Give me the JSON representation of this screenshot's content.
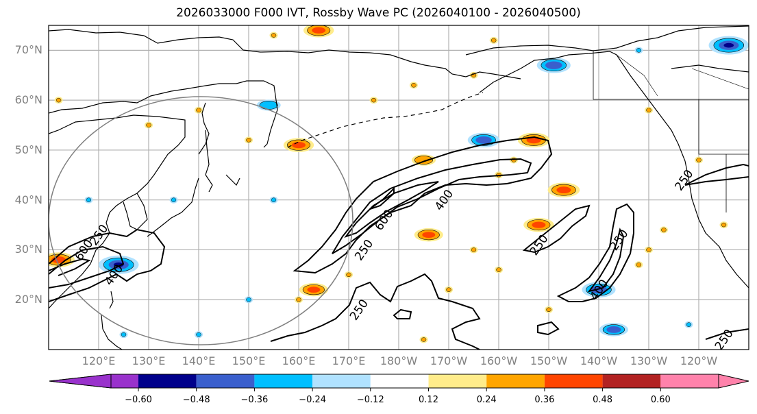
{
  "title": "2026033000 F000 IVT, Rossby Wave PC (2026040100 - 2026040500)",
  "map": {
    "projection": "PlateCarree",
    "extent": {
      "lon_min": 110,
      "lon_max": 250,
      "lat_min": 10,
      "lat_max": 75
    },
    "lat_ticks": [
      {
        "value": 70,
        "label": "70°N"
      },
      {
        "value": 60,
        "label": "60°N"
      },
      {
        "value": 50,
        "label": "50°N"
      },
      {
        "value": 40,
        "label": "40°N"
      },
      {
        "value": 30,
        "label": "30°N"
      },
      {
        "value": 20,
        "label": "20°N"
      }
    ],
    "lon_ticks": [
      {
        "value": 120,
        "label": "120°E"
      },
      {
        "value": 130,
        "label": "130°E"
      },
      {
        "value": 140,
        "label": "140°E"
      },
      {
        "value": 150,
        "label": "150°E"
      },
      {
        "value": 160,
        "label": "160°E"
      },
      {
        "value": 170,
        "label": "170°E"
      },
      {
        "value": 180,
        "label": "180°W"
      },
      {
        "value": 190,
        "label": "170°W"
      },
      {
        "value": 200,
        "label": "160°W"
      },
      {
        "value": 210,
        "label": "150°W"
      },
      {
        "value": 220,
        "label": "140°W"
      },
      {
        "value": 230,
        "label": "130°W"
      },
      {
        "value": 240,
        "label": "120°W"
      }
    ],
    "gridline_color": "#b0b0b0",
    "circle_color": "#808080"
  },
  "chart_data": {
    "type": "heatmap",
    "title": "2026033000 F000 IVT, Rossby Wave PC (2026040100 - 2026040500)",
    "shaded_variable": "Rossby Wave PC",
    "contour_variable": "IVT",
    "ivt_contour_levels": [
      250,
      400,
      600
    ],
    "ivt_contour_labels": [
      {
        "text": "250",
        "lon": 173,
        "lat": 30
      },
      {
        "text": "600",
        "lon": 177,
        "lat": 36
      },
      {
        "text": "400",
        "lon": 189,
        "lat": 40
      },
      {
        "text": "250",
        "lon": 172,
        "lat": 18
      },
      {
        "text": "250",
        "lon": 208,
        "lat": 31
      },
      {
        "text": "250",
        "lon": 224,
        "lat": 32
      },
      {
        "text": "400",
        "lon": 220,
        "lat": 22
      },
      {
        "text": "250",
        "lon": 237,
        "lat": 44
      },
      {
        "text": "250",
        "lon": 245,
        "lat": 12
      },
      {
        "text": "600",
        "lon": 117,
        "lat": 30
      },
      {
        "text": "250",
        "lon": 120,
        "lat": 33
      },
      {
        "text": "400",
        "lon": 123,
        "lat": 25
      }
    ],
    "colorbar": {
      "ticks": [
        "−0.60",
        "−0.48",
        "−0.36",
        "−0.24",
        "−0.12",
        "0.12",
        "0.24",
        "0.36",
        "0.48",
        "0.60"
      ],
      "bounds": [
        -0.72,
        -0.6,
        -0.48,
        -0.36,
        -0.24,
        -0.12,
        0.12,
        0.24,
        0.36,
        0.48,
        0.6,
        0.72
      ],
      "colors": [
        "#9932cc",
        "#00008b",
        "#3a5fcd",
        "#00bfff",
        "#b0e2ff",
        "#ffffff",
        "#ffec8b",
        "#ffa500",
        "#ff4500",
        "#b22222",
        "#ff82ab"
      ],
      "extend": "both"
    },
    "anomaly_regions": [
      {
        "lon": 186,
        "lat": 33,
        "value": 0.36
      },
      {
        "lon": 207,
        "lat": 52,
        "value": 0.4
      },
      {
        "lon": 213,
        "lat": 42,
        "value": 0.4
      },
      {
        "lon": 208,
        "lat": 35,
        "value": 0.38
      },
      {
        "lon": 185,
        "lat": 48,
        "value": 0.3
      },
      {
        "lon": 160,
        "lat": 51,
        "value": 0.38
      },
      {
        "lon": 164,
        "lat": 74,
        "value": 0.38
      },
      {
        "lon": 112,
        "lat": 28,
        "value": 0.4
      },
      {
        "lon": 163,
        "lat": 22,
        "value": 0.36
      },
      {
        "lon": 220,
        "lat": 22,
        "value": -0.42
      },
      {
        "lon": 223,
        "lat": 14,
        "value": -0.36
      },
      {
        "lon": 124,
        "lat": 27,
        "value": -0.5
      },
      {
        "lon": 154,
        "lat": 59,
        "value": -0.3
      },
      {
        "lon": 197,
        "lat": 52,
        "value": -0.4
      },
      {
        "lon": 211,
        "lat": 67,
        "value": -0.42
      },
      {
        "lon": 246,
        "lat": 71,
        "value": -0.5
      }
    ]
  }
}
